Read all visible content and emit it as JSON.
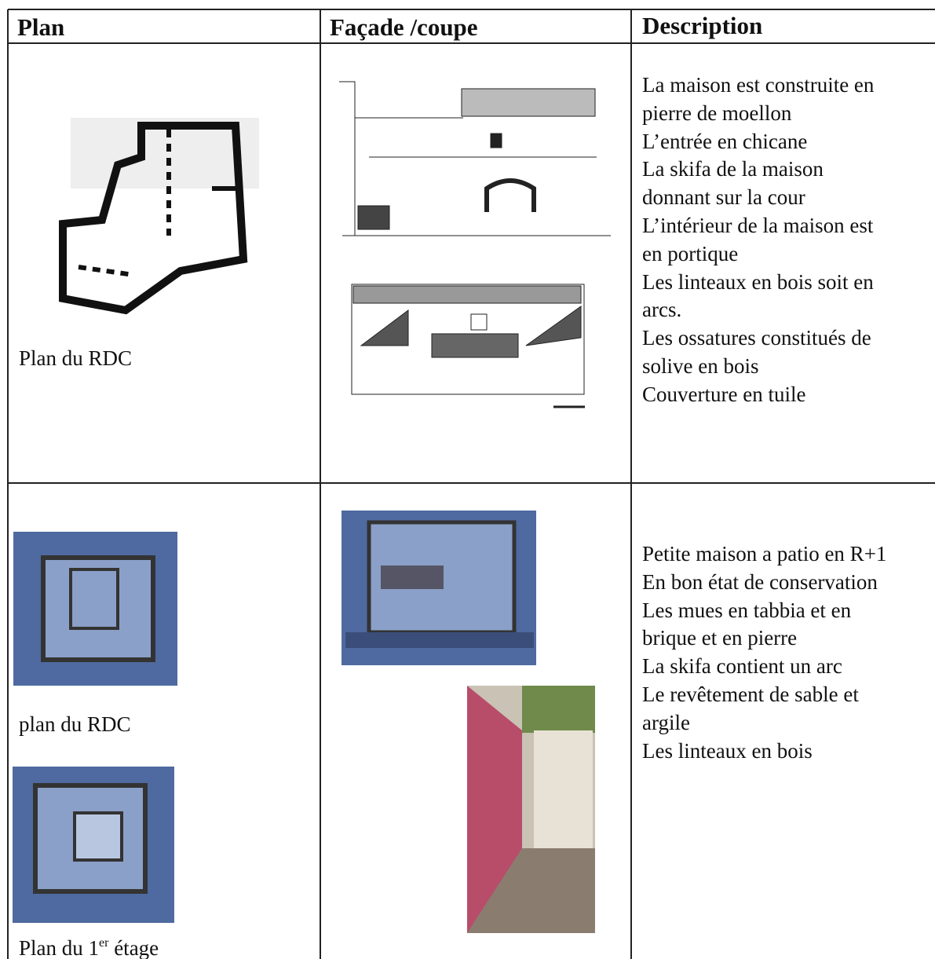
{
  "table": {
    "headers": [
      "Plan",
      "Façade /coupe",
      "Description"
    ],
    "rows": [
      {
        "plan_captions": [
          {
            "text": "Plan du RDC"
          }
        ],
        "description": [
          "La maison est construite en",
          "pierre de moellon",
          "L’entrée en chicane",
          "La skifa de la maison",
          "donnant sur la cour",
          "L’intérieur de la maison est",
          "en portique",
          "Les linteaux en bois soit en",
          "arcs.",
          "Les ossatures constitués de",
          "solive en bois",
          "Couverture en tuile"
        ]
      },
      {
        "plan_captions": [
          {
            "text": "plan du RDC"
          },
          {
            "text": "Plan du 1",
            "sup": "er",
            "after": " étage"
          }
        ],
        "description": [
          "Petite maison a patio en R+1",
          "En bon état de conservation",
          "Les mues en tabbia et en",
          "brique et en pierre",
          "La skifa contient un arc",
          "Le revêtement de sable et",
          "argile",
          "Les linteaux en bois"
        ]
      }
    ]
  }
}
